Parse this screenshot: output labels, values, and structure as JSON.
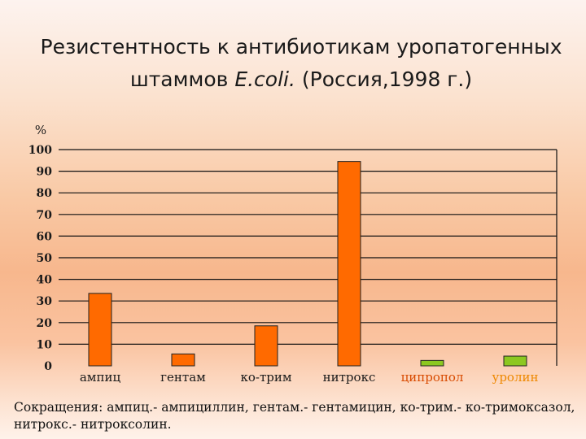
{
  "title": {
    "line1": "Резистентность к антибиотикам уропатогенных",
    "line2_prefix": "штаммов ",
    "line2_italic": "E.coli.",
    "line2_suffix": " (Россия,1998 г.)"
  },
  "chart_data": {
    "type": "bar",
    "ylabel": "%",
    "ylim": [
      0,
      100
    ],
    "yticks": [
      0,
      10,
      20,
      30,
      40,
      50,
      60,
      70,
      80,
      90,
      100
    ],
    "grid": true,
    "categories": [
      "ампиц",
      "гентам",
      "ко-трим",
      "нитрокс",
      "ципропол",
      "уролин"
    ],
    "values": [
      33.5,
      5.5,
      18.5,
      94.5,
      2.5,
      4.5
    ],
    "bar_colors": [
      "#ff6a00",
      "#ff6a00",
      "#ff6a00",
      "#ff6a00",
      "#8cc820",
      "#8cc820"
    ],
    "label_colors": [
      "#1a1a1a",
      "#1a1a1a",
      "#1a1a1a",
      "#1a1a1a",
      "#d84a00",
      "#ee8800"
    ]
  },
  "footnote": "Сокращения: ампиц.- ампициллин, гентам.- гентамицин, ко-трим.- ко-тримоксазол, нитрокс.- нитроксолин."
}
